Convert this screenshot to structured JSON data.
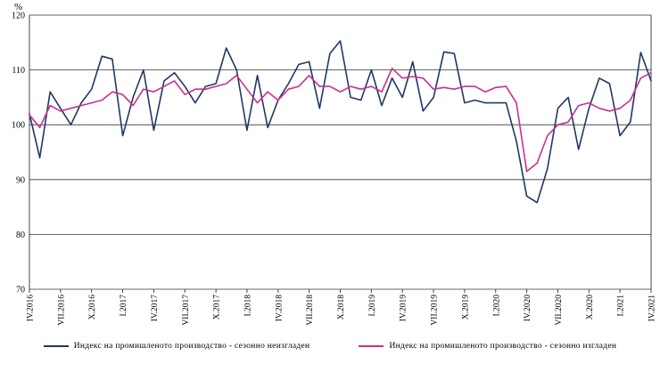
{
  "chart_data": {
    "type": "line",
    "title": "",
    "ylabel": "%",
    "xlabel": "",
    "ylim": [
      70,
      120
    ],
    "yticks": [
      70,
      80,
      90,
      100,
      110,
      120
    ],
    "grid": "horizontal",
    "legend_position": "bottom",
    "n_points": 61,
    "x_tick_every": 3,
    "x_tick_labels": [
      "IV.2016",
      "VII.2016",
      "X.2016",
      "I.2017",
      "IV.2017",
      "VII.2017",
      "X.2017",
      "I.2018",
      "IV.2018",
      "VII.2018",
      "X.2018",
      "I.2019",
      "IV.2019",
      "VII.2019",
      "X.2019",
      "I.2020",
      "IV.2020",
      "VII.2020",
      "X.2020",
      "I.2021",
      "IV.2021"
    ],
    "series": [
      {
        "name": "Индекс на промишленото производство - сезонно неизгладен",
        "color": "#1f3864",
        "values": [
          102,
          94,
          106,
          103,
          100,
          104,
          106.5,
          112.5,
          112,
          98,
          105,
          110,
          99,
          108,
          109.5,
          107,
          104,
          107,
          107.5,
          114,
          110,
          99,
          109,
          99.5,
          104.5,
          107.5,
          111,
          111.5,
          103,
          113,
          115.3,
          105,
          104.5,
          110,
          103.5,
          108.5,
          105,
          111.5,
          102.5,
          105,
          113.3,
          113,
          104,
          104.5,
          104,
          104,
          104,
          97,
          87,
          85.8,
          92,
          103,
          105,
          95.5,
          103,
          108.5,
          107.5,
          98,
          100.5,
          113.2,
          108
        ]
      },
      {
        "name": "Индекс на промишленото производство - сезонно изгладен",
        "color": "#cc2e8e",
        "values": [
          101.8,
          99.5,
          103.5,
          102.5,
          103,
          103.5,
          104,
          104.5,
          106,
          105.5,
          103.5,
          106.5,
          106,
          107,
          108,
          105.5,
          106.5,
          106.5,
          107,
          107.5,
          109,
          106.5,
          104,
          106,
          104.5,
          106.5,
          107,
          109,
          107,
          107,
          106,
          107,
          106.5,
          107,
          106,
          110.3,
          108.5,
          108.8,
          108.5,
          106.5,
          106.8,
          106.5,
          107,
          107,
          106,
          106.8,
          107,
          104,
          91.5,
          93,
          98,
          100,
          100.5,
          103.5,
          104,
          103,
          102.5,
          103,
          104.5,
          108.5,
          109.5
        ]
      }
    ]
  }
}
